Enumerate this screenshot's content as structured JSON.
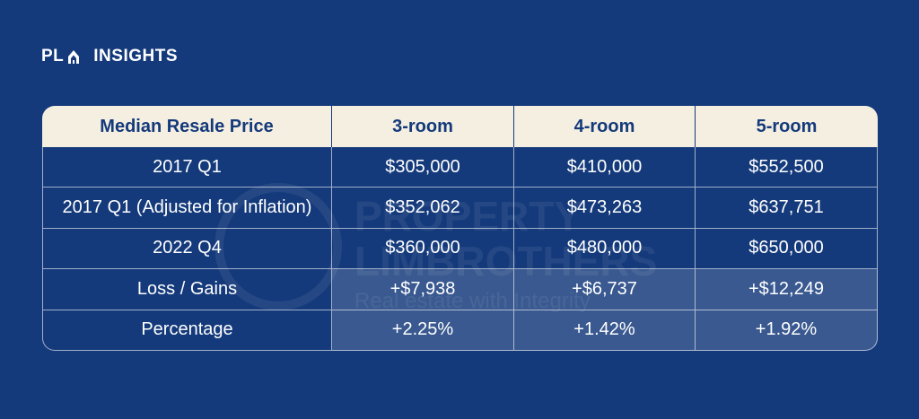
{
  "brand": {
    "name_part1": "PL",
    "name_part2": "INSIGHTS",
    "accent": "#ffffff"
  },
  "colors": {
    "background": "#143a7b",
    "header_bg": "#f5efe1",
    "header_text": "#143a7b",
    "highlight": "rgba(255,255,255,0.16)"
  },
  "watermark": {
    "line1": "PROPERTY",
    "line2": "LIMBROTHERS",
    "line3": "Real estate with Integrity"
  },
  "chart_data": {
    "type": "table",
    "columns": [
      "Median Resale Price",
      "3-room",
      "4-room",
      "5-room"
    ],
    "rows": [
      {
        "label": "2017 Q1",
        "values": [
          "$305,000",
          "$410,000",
          "$552,500"
        ],
        "highlight": false
      },
      {
        "label": "2017 Q1 (Adjusted for Inflation)",
        "values": [
          "$352,062",
          "$473,263",
          "$637,751"
        ],
        "highlight": false
      },
      {
        "label": "2022 Q4",
        "values": [
          "$360,000",
          "$480,000",
          "$650,000"
        ],
        "highlight": false
      },
      {
        "label": "Loss / Gains",
        "values": [
          "+$7,938",
          "+$6,737",
          "+$12,249"
        ],
        "highlight": true
      },
      {
        "label": "Percentage",
        "values": [
          "+2.25%",
          "+1.42%",
          "+1.92%"
        ],
        "highlight": true
      }
    ]
  }
}
